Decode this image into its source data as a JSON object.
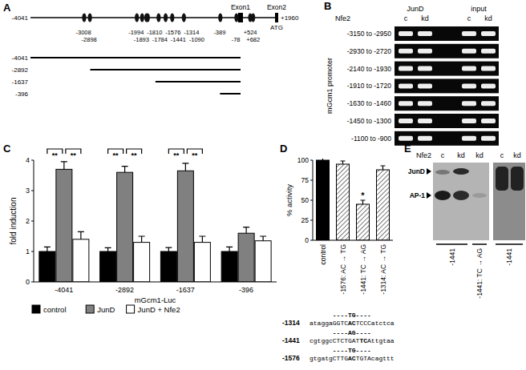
{
  "panel_labels": [
    "A",
    "B",
    "C",
    "D",
    "E"
  ],
  "panel_a": {
    "start": -4041,
    "end": {
      "value": 1960,
      "label": "+1960"
    },
    "exon1": "Exon1",
    "exon2": "Exon2",
    "atg": "ATG",
    "sites": [
      -3008,
      -2898,
      -1994,
      -1893,
      -1810,
      -1784,
      -1576,
      -1441,
      -1314,
      -1090,
      -389,
      -78,
      {
        "value": 524,
        "label": "+524"
      },
      {
        "value": 682,
        "label": "+682"
      }
    ],
    "constructs": [
      -4041,
      -2892,
      -1637,
      -396
    ]
  },
  "panel_b": {
    "factor": "Nfe2",
    "groups": [
      "JunD",
      "input"
    ],
    "lanes": [
      "c",
      "kd",
      "c",
      "kd"
    ],
    "axis_label": "mGcm1 promoter",
    "rows": [
      "-3150 to -2950",
      "-2930 to -2720",
      "-2140 to -1930",
      "-1910 to -1720",
      "-1630 to -1460",
      "-1450 to -1300",
      "-1100 to -900"
    ]
  },
  "chart_data": [
    {
      "type": "bar",
      "categories": [
        "-4041",
        "-2892",
        "-1637",
        "-396"
      ],
      "x_label": "mGcm1-Luc",
      "y_label": "fold induction",
      "ylim": [
        0,
        4
      ],
      "yticks": [
        0,
        1,
        2,
        3,
        4
      ],
      "legend": "bottom",
      "series": [
        {
          "name": "control",
          "color": "#000000",
          "values": [
            1,
            1,
            1,
            1
          ],
          "errors": [
            0.15,
            0.12,
            0.13,
            0.15
          ]
        },
        {
          "name": "JunD",
          "color": "#808080",
          "values": [
            3.7,
            3.6,
            3.65,
            1.6
          ],
          "errors": [
            0.25,
            0.2,
            0.25,
            0.2
          ]
        },
        {
          "name": "JunD + Nfe2",
          "color": "#ffffff",
          "values": [
            1.4,
            1.3,
            1.3,
            1.35
          ],
          "errors": [
            0.25,
            0.2,
            0.2,
            0.15
          ]
        }
      ],
      "annotations": [
        {
          "category": 0,
          "from": 0,
          "to": 1,
          "label": "**"
        },
        {
          "category": 0,
          "from": 1,
          "to": 2,
          "label": "**"
        },
        {
          "category": 1,
          "from": 0,
          "to": 1,
          "label": "**"
        },
        {
          "category": 1,
          "from": 1,
          "to": 2,
          "label": "**"
        },
        {
          "category": 2,
          "from": 0,
          "to": 1,
          "label": "**"
        },
        {
          "category": 2,
          "from": 1,
          "to": 2,
          "label": "**"
        }
      ]
    },
    {
      "type": "bar",
      "categories": [
        "control",
        "-1576: AC → TG",
        "-1441: TC → AG",
        "-1314: AC → TG"
      ],
      "y_label": "% activity",
      "ylim": [
        0,
        100
      ],
      "yticks": [
        0,
        25,
        50,
        75,
        100
      ],
      "values": [
        100,
        95,
        45,
        88
      ],
      "errors": [
        4,
        4,
        5,
        5
      ],
      "colors": [
        "#000000",
        "#555555",
        "#555555",
        "#555555"
      ],
      "annotations": [
        {
          "category": 2,
          "label": "*"
        }
      ]
    }
  ],
  "panel_d_sequences": [
    {
      "position": "-1314",
      "mutation_line": "----TG----",
      "parts": [
        "atagga",
        "GGTC",
        "AC",
        "TCCC",
        "atctca"
      ]
    },
    {
      "position": "-1441",
      "mutation_line": "----AG----",
      "parts": [
        "cgtggc",
        "CTCTGAT",
        "TC",
        "A",
        "ttgtaa"
      ]
    },
    {
      "position": "-1576",
      "mutation_line": "----TG----",
      "parts": [
        "gtgatg",
        "CTTG",
        "AC",
        "TGTA",
        "cagttt"
      ]
    }
  ],
  "panel_e": {
    "factor": "Nfe2",
    "lanes": [
      "c",
      "kd",
      "kd"
    ],
    "lanes2": [
      "c",
      "kd"
    ],
    "bands": [
      "JunD",
      "AP-1"
    ],
    "probes": [
      "-1441",
      "-1441: TC → AG",
      "-1441"
    ]
  }
}
